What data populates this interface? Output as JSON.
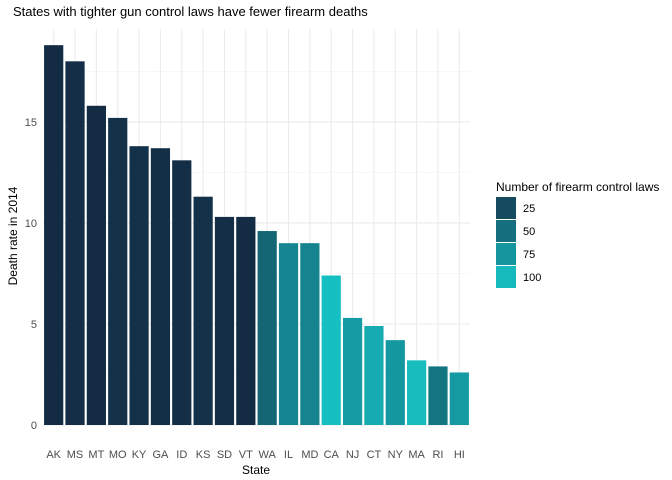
{
  "chart_data": {
    "type": "bar",
    "title": "States with tighter gun control laws have fewer firearm deaths",
    "xlabel": "State",
    "ylabel": "Death rate in 2014",
    "categories": [
      "AK",
      "MS",
      "MT",
      "MO",
      "KY",
      "GA",
      "ID",
      "KS",
      "SD",
      "VT",
      "WA",
      "IL",
      "MD",
      "CA",
      "NJ",
      "CT",
      "NY",
      "MA",
      "RI",
      "HI"
    ],
    "values": [
      18.8,
      18.0,
      15.8,
      15.2,
      13.8,
      13.7,
      13.1,
      11.3,
      10.3,
      10.3,
      9.6,
      9.0,
      9.0,
      7.4,
      5.3,
      4.9,
      4.2,
      3.2,
      2.9,
      2.6
    ],
    "laws": [
      3,
      5,
      4,
      8,
      7,
      6,
      5,
      7,
      5,
      3,
      43,
      65,
      63,
      104,
      79,
      90,
      76,
      101,
      53,
      78
    ],
    "ylim": [
      0,
      19.6
    ],
    "yticks": [
      0,
      5,
      10,
      15
    ],
    "grid": true,
    "legend": {
      "title": "Number of firearm control laws",
      "placement": "right",
      "breaks": [
        25,
        50,
        75,
        100
      ],
      "range": [
        3,
        104
      ],
      "low_color": "#132B43",
      "high_color": "#16C0C2"
    }
  }
}
